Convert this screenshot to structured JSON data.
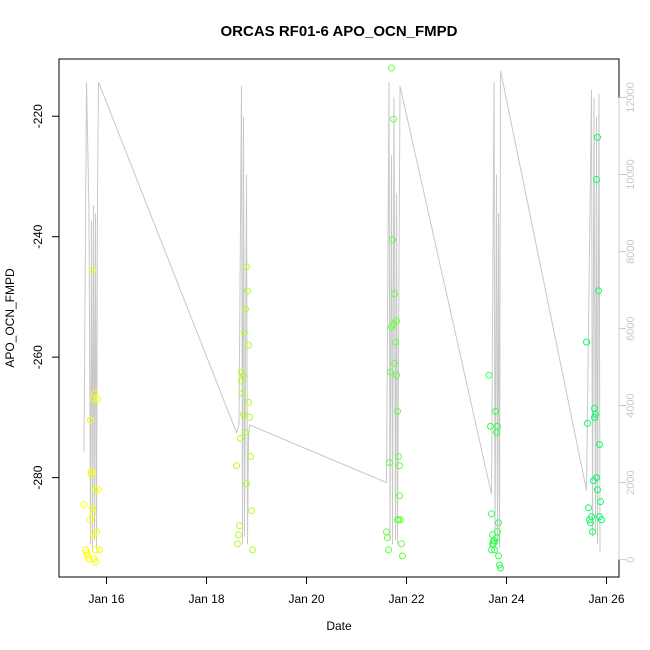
{
  "chart_data": {
    "type": "scatter",
    "title": "ORCAS RF01-6 APO_OCN_FMPD",
    "xlabel": "Date",
    "ylabel": "APO_OCN_FMPD",
    "x_unit": "days in January (2016)",
    "xlim": [
      15.05,
      26.25
    ],
    "ylim": [
      -296.5,
      -210.5
    ],
    "y_ticks": [
      -220,
      -240,
      -260,
      -280
    ],
    "x_ticks": [
      {
        "value": 16,
        "label": "Jan 16"
      },
      {
        "value": 18,
        "label": "Jan 18"
      },
      {
        "value": 20,
        "label": "Jan 20"
      },
      {
        "value": 22,
        "label": "Jan 22"
      },
      {
        "value": 24,
        "label": "Jan 24"
      },
      {
        "value": 26,
        "label": "Jan 26"
      }
    ],
    "secondary_axis": {
      "label": "",
      "color": "#c8c8c8",
      "ylim": [
        -450,
        13000
      ],
      "ticks": [
        0,
        2000,
        4000,
        6000,
        8000,
        10000,
        12000
      ]
    },
    "grid": false,
    "point_color_gradient": [
      "#ffff00",
      "#00ff66"
    ],
    "altitude_trace": [
      [
        15.55,
        2800
      ],
      [
        15.6,
        12400
      ],
      [
        15.65,
        9000
      ],
      [
        15.68,
        400
      ],
      [
        15.7,
        8800
      ],
      [
        15.72,
        300
      ],
      [
        15.74,
        9200
      ],
      [
        15.76,
        500
      ],
      [
        15.78,
        9000
      ],
      [
        15.8,
        300
      ],
      [
        15.82,
        9500
      ],
      [
        15.84,
        12400
      ],
      [
        18.6,
        3300
      ],
      [
        18.65,
        3500
      ],
      [
        18.7,
        12300
      ],
      [
        18.72,
        400
      ],
      [
        18.74,
        11500
      ],
      [
        18.76,
        600
      ],
      [
        18.8,
        10000
      ],
      [
        18.82,
        400
      ],
      [
        18.84,
        3200
      ],
      [
        18.86,
        3500
      ],
      [
        21.6,
        2000
      ],
      [
        21.65,
        12400
      ],
      [
        21.67,
        500
      ],
      [
        21.7,
        10500
      ],
      [
        21.72,
        400
      ],
      [
        21.75,
        12000
      ],
      [
        21.78,
        500
      ],
      [
        21.8,
        9500
      ],
      [
        21.82,
        400
      ],
      [
        21.87,
        12300
      ],
      [
        23.7,
        1700
      ],
      [
        23.75,
        12400
      ],
      [
        23.77,
        300
      ],
      [
        23.8,
        10000
      ],
      [
        23.82,
        400
      ],
      [
        23.84,
        9000
      ],
      [
        23.86,
        300
      ],
      [
        23.88,
        12700
      ],
      [
        25.6,
        1800
      ],
      [
        25.7,
        12200
      ],
      [
        25.72,
        600
      ],
      [
        25.75,
        12000
      ],
      [
        25.78,
        700
      ],
      [
        25.8,
        11500
      ],
      [
        25.82,
        400
      ],
      [
        25.85,
        12100
      ],
      [
        25.87,
        200
      ]
    ],
    "points": [
      [
        15.55,
        -284.5
      ],
      [
        15.58,
        -292
      ],
      [
        15.6,
        -292.5
      ],
      [
        15.62,
        -293
      ],
      [
        15.65,
        -293.5
      ],
      [
        15.68,
        -270.5
      ],
      [
        15.7,
        -279
      ],
      [
        15.72,
        -285
      ],
      [
        15.73,
        -286
      ],
      [
        15.74,
        -289.5
      ],
      [
        15.75,
        -293.5
      ],
      [
        15.76,
        -266
      ],
      [
        15.77,
        -282
      ],
      [
        15.78,
        -292
      ],
      [
        15.8,
        -289
      ],
      [
        15.82,
        -267
      ],
      [
        15.84,
        -282
      ],
      [
        15.86,
        -292
      ],
      [
        15.72,
        -245.5
      ],
      [
        15.7,
        -279.5
      ],
      [
        15.68,
        -287
      ],
      [
        15.74,
        -267
      ],
      [
        15.78,
        -294
      ],
      [
        18.6,
        -278
      ],
      [
        18.62,
        -291
      ],
      [
        18.64,
        -289.5
      ],
      [
        18.66,
        -288
      ],
      [
        18.68,
        -273.5
      ],
      [
        18.7,
        -264
      ],
      [
        18.72,
        -266
      ],
      [
        18.74,
        -269.5
      ],
      [
        18.76,
        -256
      ],
      [
        18.78,
        -252
      ],
      [
        18.8,
        -245
      ],
      [
        18.82,
        -249
      ],
      [
        18.84,
        -258
      ],
      [
        18.86,
        -270
      ],
      [
        18.88,
        -276.5
      ],
      [
        18.9,
        -285.5
      ],
      [
        18.92,
        -292
      ],
      [
        18.74,
        -263
      ],
      [
        18.7,
        -262.5
      ],
      [
        18.78,
        -272.5
      ],
      [
        18.8,
        -281
      ],
      [
        18.84,
        -267.5
      ],
      [
        21.6,
        -289
      ],
      [
        21.62,
        -290
      ],
      [
        21.64,
        -292
      ],
      [
        21.66,
        -277.5
      ],
      [
        21.68,
        -262.5
      ],
      [
        21.7,
        -255
      ],
      [
        21.72,
        -240.5
      ],
      [
        21.74,
        -220.5
      ],
      [
        21.7,
        -212
      ],
      [
        21.76,
        -249.5
      ],
      [
        21.78,
        -257.5
      ],
      [
        21.8,
        -263
      ],
      [
        21.82,
        -269
      ],
      [
        21.84,
        -276.5
      ],
      [
        21.86,
        -283
      ],
      [
        21.88,
        -287
      ],
      [
        21.9,
        -291
      ],
      [
        21.92,
        -293
      ],
      [
        21.8,
        -254
      ],
      [
        21.82,
        -287
      ],
      [
        21.84,
        -287
      ],
      [
        21.86,
        -278
      ],
      [
        21.74,
        -254.5
      ],
      [
        21.76,
        -261
      ],
      [
        23.65,
        -263
      ],
      [
        23.68,
        -271.5
      ],
      [
        23.7,
        -286
      ],
      [
        23.72,
        -289.5
      ],
      [
        23.74,
        -291
      ],
      [
        23.76,
        -290.5
      ],
      [
        23.78,
        -269
      ],
      [
        23.8,
        -272.5
      ],
      [
        23.82,
        -271.5
      ],
      [
        23.84,
        -287.5
      ],
      [
        23.86,
        -294.5
      ],
      [
        23.88,
        -295
      ],
      [
        23.72,
        -291
      ],
      [
        23.76,
        -292
      ],
      [
        23.8,
        -290
      ],
      [
        23.84,
        -293
      ],
      [
        23.7,
        -292
      ],
      [
        23.74,
        -290.5
      ],
      [
        23.82,
        -289
      ],
      [
        25.6,
        -257.5
      ],
      [
        25.62,
        -271
      ],
      [
        25.64,
        -285
      ],
      [
        25.66,
        -287
      ],
      [
        25.68,
        -287.5
      ],
      [
        25.7,
        -286.5
      ],
      [
        25.72,
        -289
      ],
      [
        25.74,
        -280.5
      ],
      [
        25.76,
        -268.5
      ],
      [
        25.78,
        -269.5
      ],
      [
        25.8,
        -230.5
      ],
      [
        25.82,
        -223.5
      ],
      [
        25.84,
        -249
      ],
      [
        25.86,
        -274.5
      ],
      [
        25.88,
        -284
      ],
      [
        25.9,
        -287
      ],
      [
        25.76,
        -270
      ],
      [
        25.8,
        -280
      ],
      [
        25.82,
        -282
      ],
      [
        25.86,
        -286.5
      ]
    ]
  }
}
